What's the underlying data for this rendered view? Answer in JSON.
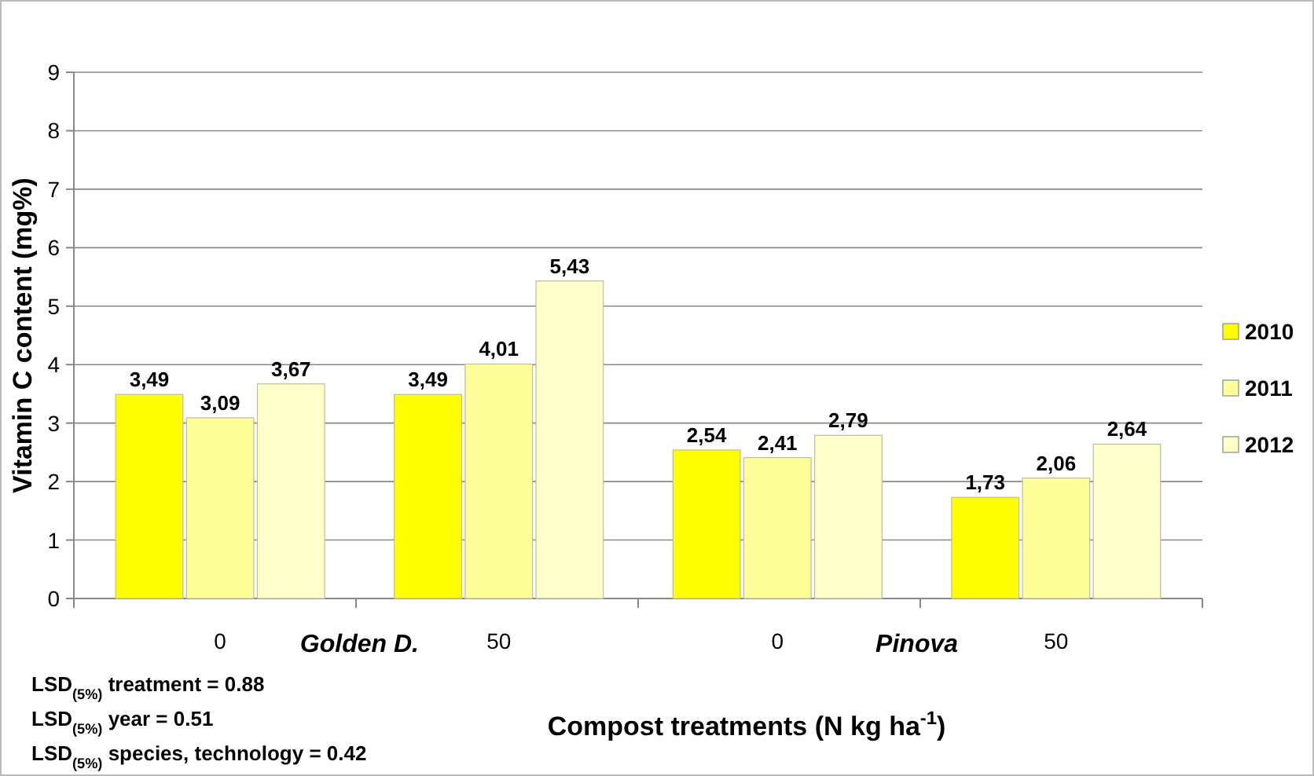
{
  "chart_data": {
    "type": "bar",
    "ylabel": "Vitamin C content (mg%)",
    "xlabel": "Compost treatments (N kg ha$^{-1}$)",
    "categories": [
      "0",
      "50",
      "0",
      "50"
    ],
    "series": [
      {
        "name": "2010",
        "color": "#ffff00",
        "values": [
          3.49,
          3.49,
          2.54,
          1.73
        ],
        "value_labels": [
          "3,49",
          "3,49",
          "2,54",
          "1,73"
        ]
      },
      {
        "name": "2011",
        "color": "#ffff99",
        "values": [
          3.09,
          4.01,
          2.41,
          2.06
        ],
        "value_labels": [
          "3,09",
          "4,01",
          "2,41",
          "2,06"
        ]
      },
      {
        "name": "2012",
        "color": "#ffffcc",
        "values": [
          3.67,
          5.43,
          2.79,
          2.64
        ],
        "value_labels": [
          "3,67",
          "5,43",
          "2,79",
          "2,64"
        ]
      }
    ],
    "ylim": [
      0,
      9
    ],
    "yticks": [
      0,
      1,
      2,
      3,
      4,
      5,
      6,
      7,
      8,
      9
    ],
    "grid": "y",
    "legend": "right",
    "annotations": [
      "Golden D.",
      "Pinova",
      "LSD$_{(5%)}$ treatment = 0.88",
      "LSD$_{(5%)}$ year =  0.51",
      "LSD$_{(5%)}$ species, technology  = 0.42"
    ]
  }
}
